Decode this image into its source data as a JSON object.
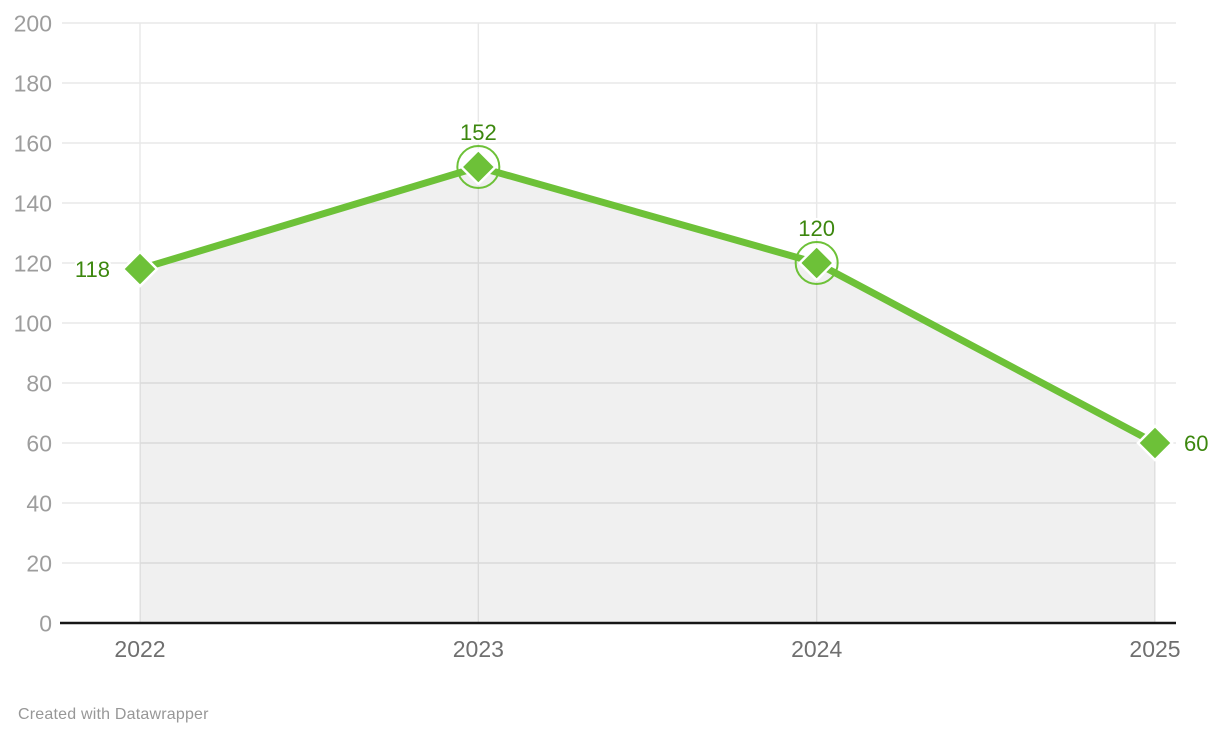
{
  "attribution": "Created with Datawrapper",
  "colors": {
    "line": "#6dc138",
    "marker_fill": "#6dc138",
    "marker_outline": "#ffffff",
    "emphasis_ring": "#6dc138",
    "data_label": "#3c870e",
    "y_tick_label": "#9d9d9d",
    "x_tick_label": "#6f6f6f",
    "grid": "#e8e8e8",
    "axis": "#161616",
    "area_fill": "rgba(0,0,0,0.06)",
    "background": "#ffffff"
  },
  "chart_data": {
    "type": "line",
    "categories": [
      "2022",
      "2023",
      "2024",
      "2025"
    ],
    "series": [
      {
        "name": "value",
        "values": [
          118,
          152,
          120,
          60
        ],
        "data_labels": [
          "118",
          "152",
          "120",
          "60"
        ],
        "label_positions": [
          "left",
          "top",
          "top",
          "right"
        ],
        "emphasized_points": [
          false,
          true,
          true,
          false
        ]
      }
    ],
    "title": "",
    "xlabel": "",
    "ylabel": "",
    "ylim": [
      0,
      200
    ],
    "yticks": [
      0,
      20,
      40,
      60,
      80,
      100,
      120,
      140,
      160,
      180,
      200
    ],
    "grid": "on",
    "legend_position": "none",
    "marker_shape": "diamond",
    "area_fill": true
  }
}
